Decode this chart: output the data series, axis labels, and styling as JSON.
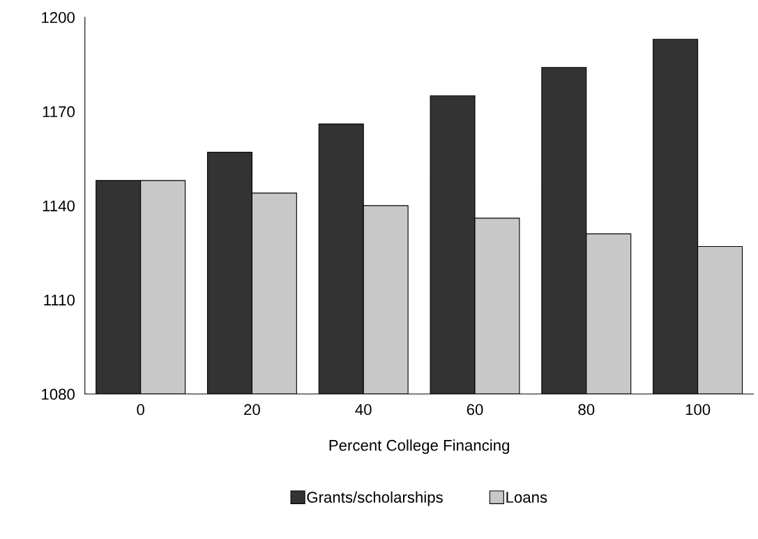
{
  "chart_data": {
    "type": "bar",
    "xlabel": "Percent College Financing",
    "categories": [
      "0",
      "20",
      "40",
      "60",
      "80",
      "100"
    ],
    "series": [
      {
        "name": "Grants/scholarships",
        "color": "#333333",
        "values": [
          1148,
          1157,
          1166,
          1175,
          1184,
          1193
        ]
      },
      {
        "name": "Loans",
        "color": "#c8c8c8",
        "values": [
          1148,
          1144,
          1140,
          1136,
          1131,
          1127
        ]
      }
    ],
    "ylim": [
      1080,
      1200
    ],
    "yticks": [
      1080,
      1110,
      1140,
      1170,
      1200
    ],
    "grid": false,
    "legend": "bottom"
  }
}
